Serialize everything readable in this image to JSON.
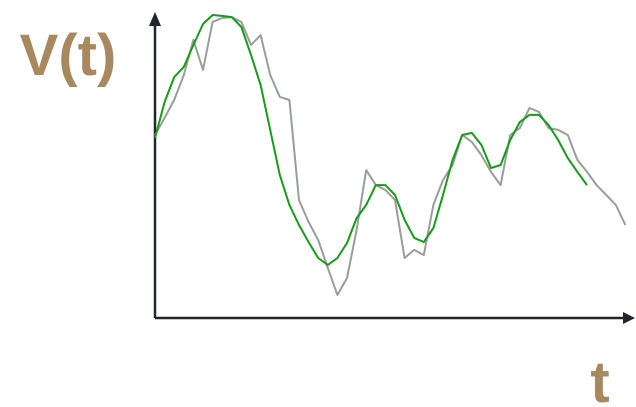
{
  "chart_data": {
    "type": "line",
    "ylabel": "V(t)",
    "xlabel": "t",
    "x": [
      0,
      2,
      4,
      6,
      8,
      10,
      12,
      14,
      16,
      18,
      20,
      22,
      24,
      26,
      28,
      30,
      32,
      34,
      36,
      38,
      40,
      42,
      44,
      46,
      48,
      50,
      52,
      54,
      56,
      58,
      60,
      62,
      64,
      66,
      68,
      70,
      72,
      74,
      76,
      78,
      80,
      82,
      84,
      86,
      88,
      90,
      92,
      94,
      96,
      98
    ],
    "series": [
      {
        "color": "#999e99",
        "values": [
          61,
          66.7,
          72.7,
          81,
          92.7,
          82.7,
          98.7,
          100,
          100.3,
          98.7,
          91,
          94.3,
          81,
          73.7,
          72.7,
          39.3,
          32,
          26,
          16.7,
          7.7,
          13.3,
          29.3,
          49.3,
          44.3,
          42.7,
          39.3,
          20,
          22.7,
          21,
          37.7,
          46,
          51,
          61,
          58.7,
          54.3,
          48.7,
          44.3,
          61,
          63.3,
          70,
          68.7,
          63.3,
          62.7,
          61,
          52.7,
          48.7,
          44.3,
          41,
          37.7,
          31
        ]
      },
      {
        "color": "#1a9a1a",
        "values": [
          60,
          72,
          80.3,
          83.7,
          91,
          98,
          101,
          100.7,
          100.3,
          97,
          87.7,
          77.7,
          62.7,
          47.7,
          37.7,
          31,
          25.3,
          20,
          17.7,
          20,
          25,
          33.3,
          37.7,
          44.3,
          44.3,
          41,
          32.7,
          26.7,
          25.3,
          30,
          41,
          52.7,
          61,
          61.7,
          57.7,
          50,
          51,
          59.3,
          65.3,
          67.7,
          67.7,
          64.3,
          59.3,
          53.3,
          48.7,
          44.3,
          null,
          null,
          null,
          null
        ]
      }
    ],
    "xlim": [
      0,
      100
    ],
    "ylim": [
      0,
      102
    ]
  }
}
